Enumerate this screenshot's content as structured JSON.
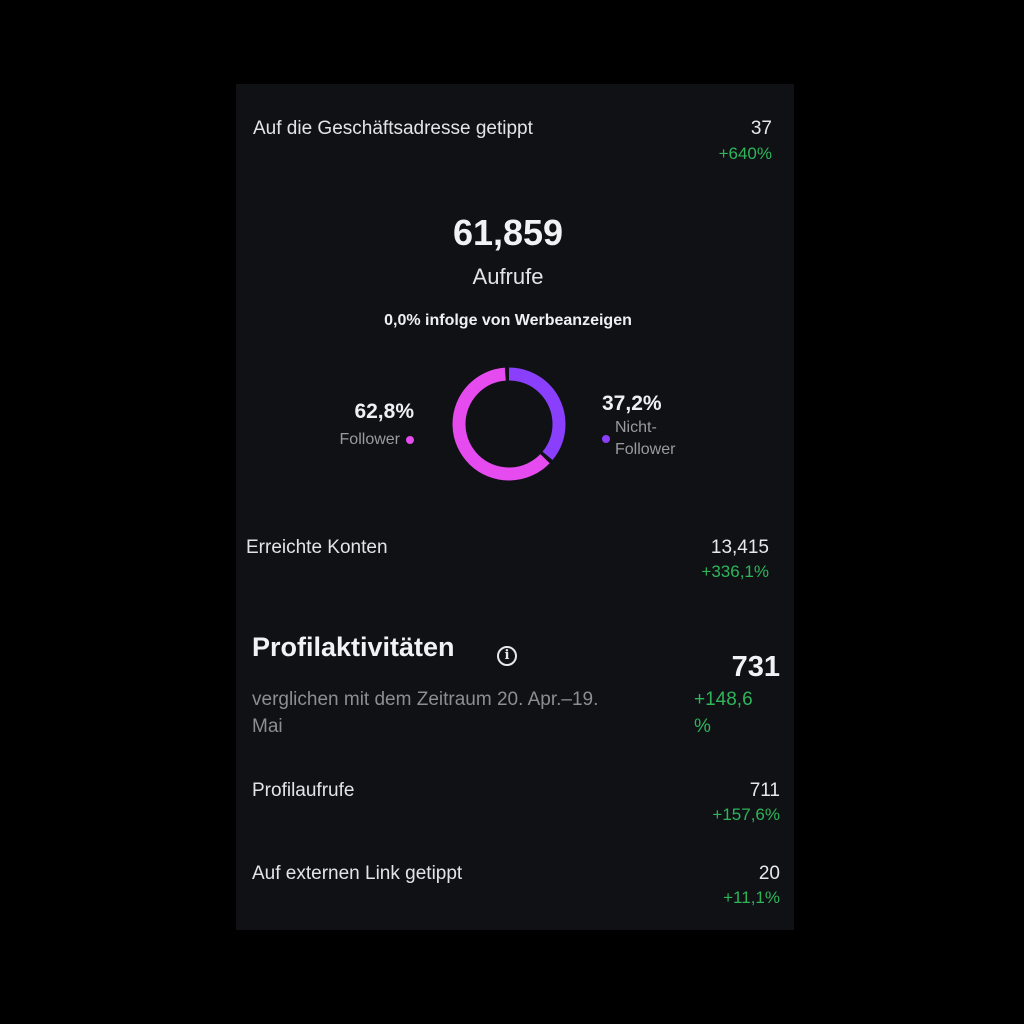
{
  "rows": {
    "business_address": {
      "label": "Auf die Geschäftsadresse getippt",
      "value": "37",
      "delta": "+640%"
    },
    "accounts_reached": {
      "label": "Erreichte Konten",
      "value": "13,415",
      "delta": "+336,1%"
    },
    "profile_views": {
      "label": "Profilaufrufe",
      "value": "711",
      "delta": "+157,6%"
    },
    "external_link": {
      "label": "Auf externen Link getippt",
      "value": "20",
      "delta": "+11,1%"
    }
  },
  "views": {
    "total": "61,859",
    "caption": "Aufrufe",
    "ads_note": "0,0% infolge von Werbeanzeigen"
  },
  "donut": {
    "followers": {
      "pct_label": "62,8%",
      "label": "Follower",
      "fraction": 0.628,
      "color": "#e64bf0"
    },
    "non_followers": {
      "pct_label": "37,2%",
      "label_line1": "Nicht-",
      "label_line2": "Follower",
      "fraction": 0.372,
      "color": "#8a3ffc"
    }
  },
  "profile_activity": {
    "title": "Profilaktivitäten",
    "info_icon": "info-icon",
    "total": "731",
    "subtitle_line1": "verglichen mit dem Zeitraum 20. Apr.–19.",
    "subtitle_line2": "Mai",
    "delta_line1": "+148,6",
    "delta_line2": "%"
  },
  "colors": {
    "background": "#000000",
    "panel": "#0f1115",
    "positive": "#2fb45a",
    "followers": "#e64bf0",
    "non_followers": "#8a3ffc"
  }
}
